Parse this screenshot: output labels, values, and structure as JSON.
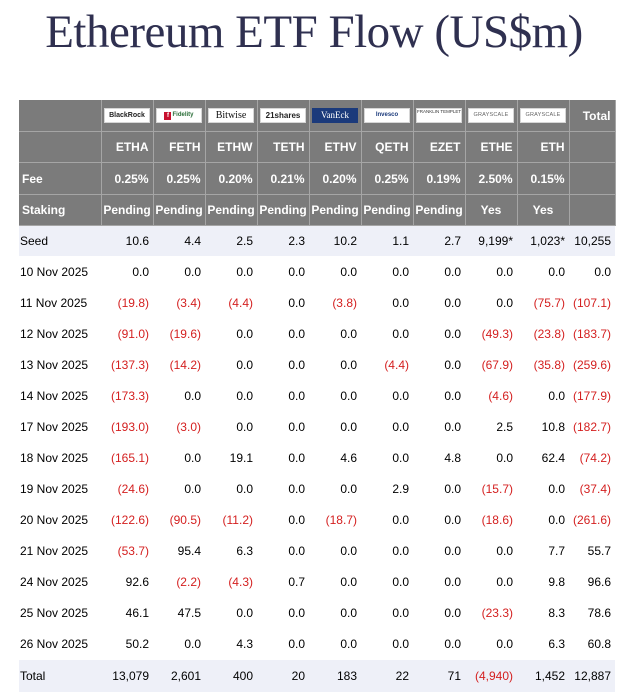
{
  "title": "Ethereum ETF Flow (US$m)",
  "colors": {
    "header_bg": "#7b7b7b",
    "negative": "#d41f1f",
    "highlight_row": "#eef0f8",
    "title": "#2f3050"
  },
  "issuer_logos": [
    {
      "text": "BlackRock",
      "icon": "blackrock-logo"
    },
    {
      "text": "Fidelity",
      "icon": "fidelity-logo"
    },
    {
      "text": "Bitwise",
      "icon": "bitwise-logo"
    },
    {
      "text": "21shares",
      "icon": "21shares-logo"
    },
    {
      "text": "VanEck",
      "icon": "vaneck-logo"
    },
    {
      "text": "Invesco",
      "icon": "invesco-logo"
    },
    {
      "text": "FRANKLIN TEMPLETON",
      "icon": "franklin-templeton-logo"
    },
    {
      "text": "GRAYSCALE",
      "icon": "grayscale-logo"
    },
    {
      "text": "GRAYSCALE",
      "icon": "grayscale-logo"
    }
  ],
  "header": {
    "total_label": "Total",
    "tickers": [
      "ETHA",
      "FETH",
      "ETHW",
      "TETH",
      "ETHV",
      "QETH",
      "EZET",
      "ETHE",
      "ETH"
    ],
    "fee_label": "Fee",
    "fees": [
      "0.25%",
      "0.25%",
      "0.20%",
      "0.21%",
      "0.20%",
      "0.25%",
      "0.19%",
      "2.50%",
      "0.15%"
    ],
    "staking_label": "Staking",
    "staking": [
      "Pending",
      "Pending",
      "Pending",
      "Pending",
      "Pending",
      "Pending",
      "Pending",
      "Yes",
      "Yes"
    ]
  },
  "rows": [
    {
      "label": "Seed",
      "values": [
        "10.6",
        "4.4",
        "2.5",
        "2.3",
        "10.2",
        "1.1",
        "2.7",
        "9,199*",
        "1,023*",
        "10,255"
      ]
    },
    {
      "label": "10 Nov 2025",
      "values": [
        "0.0",
        "0.0",
        "0.0",
        "0.0",
        "0.0",
        "0.0",
        "0.0",
        "0.0",
        "0.0",
        "0.0"
      ]
    },
    {
      "label": "11 Nov 2025",
      "values": [
        "(19.8)",
        "(3.4)",
        "(4.4)",
        "0.0",
        "(3.8)",
        "0.0",
        "0.0",
        "0.0",
        "(75.7)",
        "(107.1)"
      ]
    },
    {
      "label": "12 Nov 2025",
      "values": [
        "(91.0)",
        "(19.6)",
        "0.0",
        "0.0",
        "0.0",
        "0.0",
        "0.0",
        "(49.3)",
        "(23.8)",
        "(183.7)"
      ]
    },
    {
      "label": "13 Nov 2025",
      "values": [
        "(137.3)",
        "(14.2)",
        "0.0",
        "0.0",
        "0.0",
        "(4.4)",
        "0.0",
        "(67.9)",
        "(35.8)",
        "(259.6)"
      ]
    },
    {
      "label": "14 Nov 2025",
      "values": [
        "(173.3)",
        "0.0",
        "0.0",
        "0.0",
        "0.0",
        "0.0",
        "0.0",
        "(4.6)",
        "0.0",
        "(177.9)"
      ]
    },
    {
      "label": "17 Nov 2025",
      "values": [
        "(193.0)",
        "(3.0)",
        "0.0",
        "0.0",
        "0.0",
        "0.0",
        "0.0",
        "2.5",
        "10.8",
        "(182.7)"
      ]
    },
    {
      "label": "18 Nov 2025",
      "values": [
        "(165.1)",
        "0.0",
        "19.1",
        "0.0",
        "4.6",
        "0.0",
        "4.8",
        "0.0",
        "62.4",
        "(74.2)"
      ]
    },
    {
      "label": "19 Nov 2025",
      "values": [
        "(24.6)",
        "0.0",
        "0.0",
        "0.0",
        "0.0",
        "2.9",
        "0.0",
        "(15.7)",
        "0.0",
        "(37.4)"
      ]
    },
    {
      "label": "20 Nov 2025",
      "values": [
        "(122.6)",
        "(90.5)",
        "(11.2)",
        "0.0",
        "(18.7)",
        "0.0",
        "0.0",
        "(18.6)",
        "0.0",
        "(261.6)"
      ]
    },
    {
      "label": "21 Nov 2025",
      "values": [
        "(53.7)",
        "95.4",
        "6.3",
        "0.0",
        "0.0",
        "0.0",
        "0.0",
        "0.0",
        "7.7",
        "55.7"
      ]
    },
    {
      "label": "24 Nov 2025",
      "values": [
        "92.6",
        "(2.2)",
        "(4.3)",
        "0.7",
        "0.0",
        "0.0",
        "0.0",
        "0.0",
        "9.8",
        "96.6"
      ]
    },
    {
      "label": "25 Nov 2025",
      "values": [
        "46.1",
        "47.5",
        "0.0",
        "0.0",
        "0.0",
        "0.0",
        "0.0",
        "(23.3)",
        "8.3",
        "78.6"
      ]
    },
    {
      "label": "26 Nov 2025",
      "values": [
        "50.2",
        "0.0",
        "4.3",
        "0.0",
        "0.0",
        "0.0",
        "0.0",
        "0.0",
        "6.3",
        "60.8"
      ]
    }
  ],
  "total_row": {
    "label": "Total",
    "values": [
      "13,079",
      "2,601",
      "400",
      "20",
      "183",
      "22",
      "71",
      "(4,940)",
      "1,452",
      "12,887"
    ]
  }
}
